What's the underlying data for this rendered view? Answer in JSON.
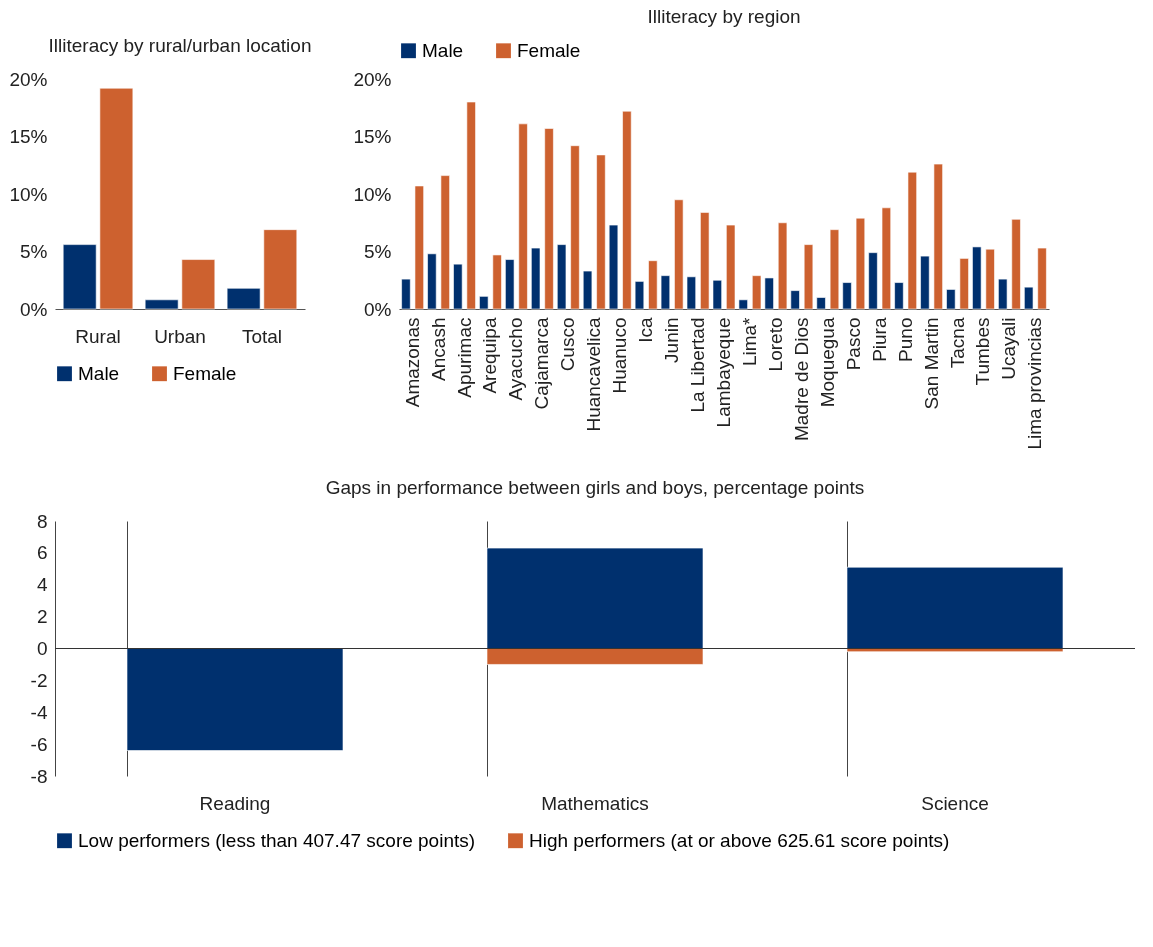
{
  "chart_data": [
    {
      "type": "bar",
      "title": "Illiteracy by rural/urban location",
      "categories": [
        "Rural",
        "Urban",
        "Total"
      ],
      "series": [
        {
          "name": "Male",
          "color": "#00306e",
          "values": [
            5.6,
            0.8,
            1.8
          ]
        },
        {
          "name": "Female",
          "color": "#cd612f",
          "values": [
            19.2,
            4.3,
            6.9
          ]
        }
      ],
      "ylim": [
        0,
        20
      ],
      "yticks": [
        {
          "value": 0,
          "label": "0%"
        },
        {
          "value": 5,
          "label": "5%"
        },
        {
          "value": 10,
          "label": "10%"
        },
        {
          "value": 15,
          "label": "15%"
        },
        {
          "value": 20,
          "label": "20%"
        }
      ],
      "legend": "bottom",
      "grid": false
    },
    {
      "type": "bar",
      "title": "Illiteracy by region",
      "categories": [
        "Amazonas",
        "Ancash",
        "Apurimac",
        "Arequipa",
        "Ayacucho",
        "Cajamarca",
        "Cusco",
        "Huancavelica",
        "Huanuco",
        "Ica",
        "Junin",
        "La Libertad",
        "Lambayeque",
        "Lima*",
        "Loreto",
        "Madre de Dios",
        "Moquegua",
        "Pasco",
        "Piura",
        "Puno",
        "San Martin",
        "Tacna",
        "Tumbes",
        "Ucayali",
        "Lima provincias"
      ],
      "series": [
        {
          "name": "Male",
          "color": "#00306e",
          "values": [
            2.6,
            4.8,
            3.9,
            1.1,
            4.3,
            5.3,
            5.6,
            3.3,
            7.3,
            2.4,
            2.9,
            2.8,
            2.5,
            0.8,
            2.7,
            1.6,
            1.0,
            2.3,
            4.9,
            2.3,
            4.6,
            1.7,
            5.4,
            2.6,
            1.9
          ]
        },
        {
          "name": "Female",
          "color": "#cd612f",
          "values": [
            10.7,
            11.6,
            18.0,
            4.7,
            16.1,
            15.7,
            14.2,
            13.4,
            17.2,
            4.2,
            9.5,
            8.4,
            7.3,
            2.9,
            7.5,
            5.6,
            6.9,
            7.9,
            8.8,
            11.9,
            12.6,
            4.4,
            5.2,
            7.8,
            5.3
          ]
        }
      ],
      "ylim": [
        0,
        20
      ],
      "yticks": [
        {
          "value": 0,
          "label": "0%"
        },
        {
          "value": 5,
          "label": "5%"
        },
        {
          "value": 10,
          "label": "10%"
        },
        {
          "value": 15,
          "label": "15%"
        },
        {
          "value": 20,
          "label": "20%"
        }
      ],
      "legend": "top",
      "grid": false
    },
    {
      "type": "bar",
      "title": "Gaps in performance between girls and boys, percentage points",
      "categories": [
        "Reading",
        "Mathematics",
        "Science"
      ],
      "stacked": true,
      "series": [
        {
          "name": "Low performers (less than 407.47 score points)",
          "color": "#00306e",
          "values": [
            -6.4,
            6.3,
            5.1
          ]
        },
        {
          "name": "High performers (at or above 625.61 score points)",
          "color": "#cd612f",
          "values": [
            null,
            -1.0,
            -0.2
          ]
        }
      ],
      "ref_lines": [
        {
          "axis": "y",
          "value": 0
        }
      ],
      "ylim": [
        -8,
        8
      ],
      "yticks": [
        -8,
        -6,
        -4,
        -2,
        0,
        2,
        4,
        6,
        8
      ],
      "legend": "bottom",
      "grid": "x"
    }
  ]
}
